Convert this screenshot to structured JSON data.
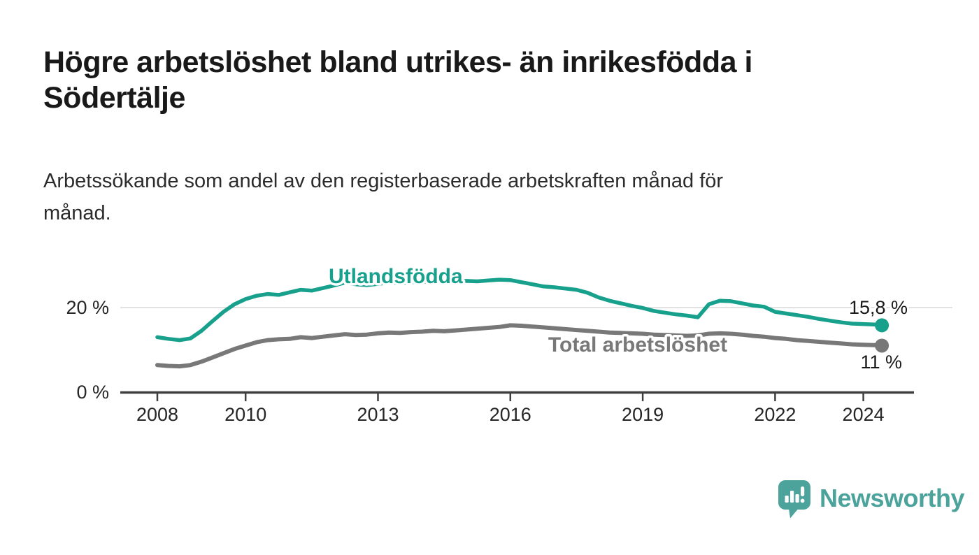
{
  "title_lines": [
    "Högre arbetslöshet bland utrikes- än inrikesfödda i",
    "Södertälje"
  ],
  "subtitle_lines": [
    "Arbetssökande som andel av den registerbaserade arbetskraften månad för",
    "månad."
  ],
  "logo": {
    "text": "Newsworthy"
  },
  "colors": {
    "teal": "#17a08c",
    "gray": "#787878",
    "logo_teal": "#4ba39c",
    "grid": "#d9d9d9",
    "axis": "#3f3f3f",
    "label_text": "#262626"
  },
  "chart_data": {
    "type": "line",
    "title": "Arbetssökande som andel av den registerbaserade arbetskraften månad för månad",
    "xlabel": "",
    "ylabel": "",
    "x_range": [
      2008,
      2024.42
    ],
    "ylim": [
      0,
      29
    ],
    "grid": "single horizontal gridline at 20%",
    "legend_position": "inline labels on lines",
    "y_ticks": [
      {
        "value": 0,
        "label": "0 %"
      },
      {
        "value": 20,
        "label": "20 %"
      }
    ],
    "x_ticks": [
      {
        "value": 2008,
        "label": "2008"
      },
      {
        "value": 2010,
        "label": "2010"
      },
      {
        "value": 2013,
        "label": "2013"
      },
      {
        "value": 2016,
        "label": "2016"
      },
      {
        "value": 2019,
        "label": "2019"
      },
      {
        "value": 2022,
        "label": "2022"
      },
      {
        "value": 2024,
        "label": "2024"
      }
    ],
    "x": [
      2008.0,
      2008.25,
      2008.5,
      2008.75,
      2009.0,
      2009.25,
      2009.5,
      2009.75,
      2010.0,
      2010.25,
      2010.5,
      2010.75,
      2011.0,
      2011.25,
      2011.5,
      2011.75,
      2012.0,
      2012.25,
      2012.5,
      2012.75,
      2013.0,
      2013.25,
      2013.5,
      2013.75,
      2014.0,
      2014.25,
      2014.5,
      2014.75,
      2015.0,
      2015.25,
      2015.5,
      2015.75,
      2016.0,
      2016.25,
      2016.5,
      2016.75,
      2017.0,
      2017.25,
      2017.5,
      2017.75,
      2018.0,
      2018.25,
      2018.5,
      2018.75,
      2019.0,
      2019.25,
      2019.5,
      2019.75,
      2020.0,
      2020.25,
      2020.5,
      2020.75,
      2021.0,
      2021.25,
      2021.5,
      2021.75,
      2022.0,
      2022.25,
      2022.5,
      2022.75,
      2023.0,
      2023.25,
      2023.5,
      2023.75,
      2024.0,
      2024.25,
      2024.42
    ],
    "series": [
      {
        "name": "Utlandsfödda",
        "color": "#17a08c",
        "end_label": "15,8 %",
        "end_value": 15.8,
        "values": [
          13.0,
          12.6,
          12.3,
          12.7,
          14.5,
          16.8,
          19.0,
          20.8,
          22.0,
          22.8,
          23.2,
          23.0,
          23.6,
          24.2,
          24.0,
          24.6,
          25.2,
          25.9,
          25.5,
          25.3,
          25.6,
          25.9,
          25.7,
          26.0,
          26.1,
          26.0,
          26.2,
          26.1,
          26.3,
          26.2,
          26.4,
          26.6,
          26.5,
          26.0,
          25.5,
          25.0,
          24.8,
          24.5,
          24.2,
          23.5,
          22.4,
          21.6,
          21.0,
          20.4,
          19.9,
          19.2,
          18.8,
          18.4,
          18.1,
          17.7,
          20.8,
          21.6,
          21.5,
          21.0,
          20.5,
          20.2,
          19.0,
          18.6,
          18.2,
          17.8,
          17.3,
          16.9,
          16.5,
          16.2,
          16.1,
          16.0,
          15.8
        ]
      },
      {
        "name": "Total arbetslöshet",
        "color": "#787878",
        "end_label": "11 %",
        "end_value": 11,
        "values": [
          6.4,
          6.2,
          6.1,
          6.4,
          7.2,
          8.2,
          9.2,
          10.2,
          11.0,
          11.8,
          12.3,
          12.5,
          12.6,
          13.0,
          12.8,
          13.1,
          13.4,
          13.7,
          13.5,
          13.6,
          13.9,
          14.1,
          14.0,
          14.2,
          14.3,
          14.5,
          14.4,
          14.6,
          14.8,
          15.0,
          15.2,
          15.4,
          15.8,
          15.7,
          15.5,
          15.3,
          15.1,
          14.9,
          14.7,
          14.5,
          14.3,
          14.1,
          14.0,
          13.9,
          13.8,
          13.6,
          13.5,
          13.4,
          13.3,
          13.4,
          13.8,
          13.9,
          13.8,
          13.6,
          13.3,
          13.1,
          12.8,
          12.6,
          12.3,
          12.1,
          11.9,
          11.7,
          11.5,
          11.3,
          11.2,
          11.1,
          11.0
        ]
      }
    ]
  }
}
